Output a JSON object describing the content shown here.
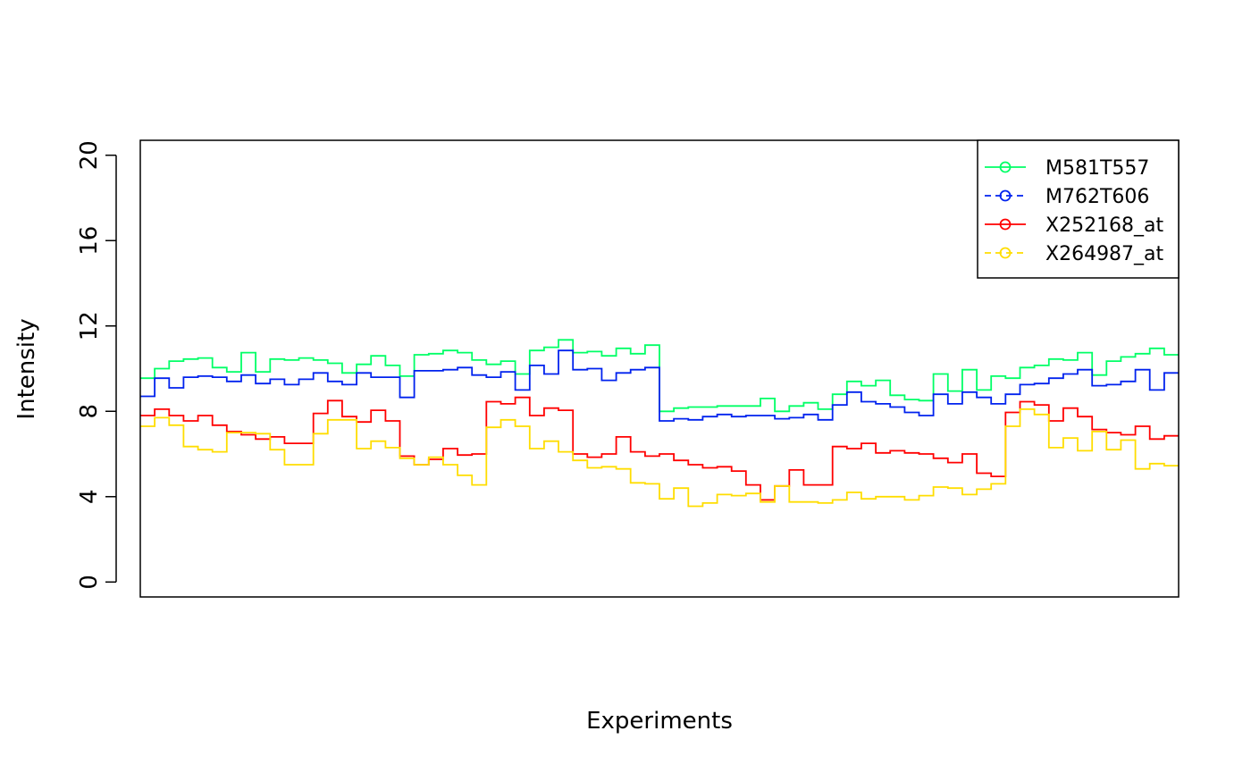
{
  "chart_data": {
    "type": "line",
    "step": true,
    "title": "",
    "xlabel": "Experiments",
    "ylabel": "Intensity",
    "ylim": [
      0,
      20
    ],
    "yticks": [
      "0",
      "4",
      "8",
      "12",
      "16",
      "20"
    ],
    "xlim": [
      0.5,
      72.5
    ],
    "legend_position": "top-right",
    "series": [
      {
        "name": "M581T557",
        "color": "#00ff66",
        "line": "solid",
        "values": [
          9.55,
          10.0,
          10.35,
          10.45,
          10.5,
          10.05,
          9.85,
          10.75,
          9.85,
          10.45,
          10.4,
          10.5,
          10.4,
          10.25,
          9.8,
          10.2,
          10.6,
          10.15,
          9.65,
          10.65,
          10.7,
          10.85,
          10.75,
          10.4,
          10.2,
          10.35,
          9.75,
          10.85,
          11.0,
          11.35,
          10.75,
          10.8,
          10.6,
          10.95,
          10.7,
          11.1,
          8.0,
          8.15,
          8.2,
          8.2,
          8.25,
          8.25,
          8.25,
          8.6,
          8.0,
          8.25,
          8.4,
          8.1,
          8.8,
          9.4,
          9.2,
          9.45,
          8.75,
          8.55,
          8.5,
          9.75,
          8.95,
          9.95,
          9.0,
          9.65,
          9.55,
          10.05,
          10.15,
          10.45,
          10.4,
          10.75,
          9.7,
          10.35,
          10.55,
          10.7,
          10.95,
          10.65
        ]
      },
      {
        "name": "M762T606",
        "color": "#0022ee",
        "line": "dashed",
        "values": [
          8.7,
          9.55,
          9.1,
          9.6,
          9.65,
          9.6,
          9.4,
          9.7,
          9.3,
          9.5,
          9.25,
          9.5,
          9.8,
          9.4,
          9.25,
          9.8,
          9.6,
          9.6,
          8.65,
          9.9,
          9.9,
          9.95,
          10.05,
          9.7,
          9.6,
          9.85,
          9.0,
          10.15,
          9.75,
          10.85,
          9.95,
          10.0,
          9.45,
          9.8,
          9.95,
          10.05,
          7.55,
          7.65,
          7.6,
          7.75,
          7.85,
          7.75,
          7.8,
          7.8,
          7.65,
          7.7,
          7.85,
          7.6,
          8.3,
          8.9,
          8.45,
          8.35,
          8.2,
          7.95,
          7.8,
          8.8,
          8.35,
          8.9,
          8.65,
          8.35,
          8.8,
          9.25,
          9.3,
          9.55,
          9.75,
          9.95,
          9.2,
          9.25,
          9.4,
          9.95,
          9.0,
          9.8
        ]
      },
      {
        "name": "X252168_at",
        "color": "#ff0000",
        "line": "solid",
        "values": [
          7.8,
          8.1,
          7.8,
          7.55,
          7.8,
          7.35,
          7.05,
          6.9,
          6.7,
          6.8,
          6.5,
          6.5,
          7.9,
          8.5,
          7.75,
          7.5,
          8.05,
          7.55,
          5.9,
          5.5,
          5.75,
          6.25,
          5.95,
          6.0,
          8.45,
          8.35,
          8.65,
          7.8,
          8.15,
          8.05,
          6.0,
          5.85,
          6.0,
          6.8,
          6.1,
          5.9,
          6.0,
          5.7,
          5.5,
          5.35,
          5.4,
          5.2,
          4.55,
          3.85,
          4.5,
          5.25,
          4.55,
          4.55,
          6.35,
          6.25,
          6.5,
          6.05,
          6.15,
          6.05,
          6.0,
          5.8,
          5.6,
          6.0,
          5.1,
          4.95,
          7.95,
          8.45,
          8.3,
          7.55,
          8.15,
          7.75,
          7.15,
          7.0,
          6.9,
          7.3,
          6.7,
          6.85
        ]
      },
      {
        "name": "X264987_at",
        "color": "#ffdd00",
        "line": "dashed",
        "values": [
          7.3,
          7.7,
          7.35,
          6.35,
          6.2,
          6.1,
          7.0,
          7.0,
          6.95,
          6.2,
          5.5,
          5.5,
          6.95,
          7.6,
          7.6,
          6.25,
          6.6,
          6.3,
          5.8,
          5.5,
          5.85,
          5.5,
          5.0,
          4.55,
          7.25,
          7.6,
          7.3,
          6.25,
          6.6,
          6.1,
          5.7,
          5.35,
          5.4,
          5.3,
          4.65,
          4.6,
          3.9,
          4.4,
          3.55,
          3.7,
          4.1,
          4.05,
          4.15,
          3.75,
          4.5,
          3.75,
          3.75,
          3.7,
          3.85,
          4.2,
          3.9,
          4.0,
          4.0,
          3.85,
          4.05,
          4.45,
          4.4,
          4.1,
          4.35,
          4.6,
          7.3,
          8.1,
          7.85,
          6.3,
          6.75,
          6.15,
          7.05,
          6.2,
          6.65,
          5.3,
          5.55,
          5.45
        ]
      }
    ]
  }
}
